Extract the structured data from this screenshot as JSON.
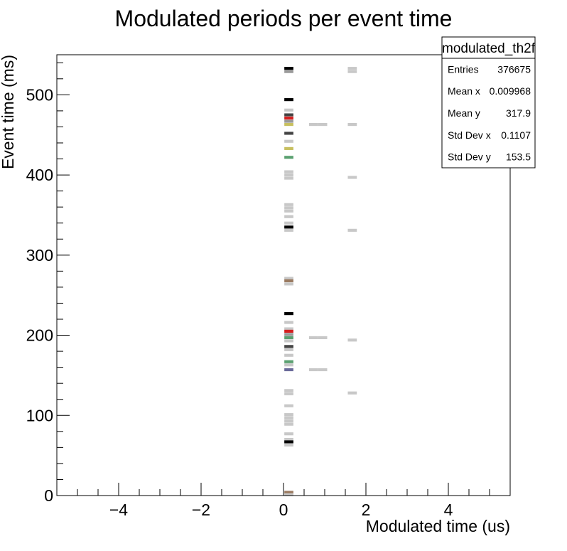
{
  "chart_data": {
    "type": "heatmap",
    "title": "Modulated periods per event time",
    "xlabel": "Modulated time (us)",
    "ylabel": "Event time (ms)",
    "xlim": [
      -5.5,
      5.5
    ],
    "ylim": [
      0,
      550
    ],
    "x_ticks": [
      -4,
      -2,
      0,
      2,
      4
    ],
    "y_ticks": [
      0,
      100,
      200,
      300,
      400,
      500
    ],
    "grid": false,
    "stats": {
      "name": "modulated_th2f",
      "rows": [
        {
          "label": "Entries",
          "value": "376675"
        },
        {
          "label": "Mean x",
          "value": "0.009968"
        },
        {
          "label": "Mean y",
          "value": "317.9"
        },
        {
          "label": "Std Dev x",
          "value": "0.1107"
        },
        {
          "label": "Std Dev y",
          "value": "153.5"
        }
      ]
    },
    "bin_width_x": 0.22,
    "bin_height_y": 3.7,
    "colors": {
      "low": "#c8c8c8",
      "gray": "#9a9a9a",
      "dark": "#444444",
      "black": "#000000",
      "red": "#d42020",
      "green": "#5aa070",
      "olive": "#c8c060",
      "purple": "#6a6a9a",
      "brown": "#9a7a60"
    },
    "cells": [
      {
        "x": 0.13,
        "y": 533,
        "c": "black"
      },
      {
        "x": 0.13,
        "y": 529,
        "c": "gray"
      },
      {
        "x": 0.13,
        "y": 494,
        "c": "black"
      },
      {
        "x": 0.13,
        "y": 481,
        "c": "low"
      },
      {
        "x": 0.13,
        "y": 475,
        "c": "dark"
      },
      {
        "x": 0.13,
        "y": 471,
        "c": "red"
      },
      {
        "x": 0.13,
        "y": 467,
        "c": "gray"
      },
      {
        "x": 0.13,
        "y": 463,
        "c": "olive"
      },
      {
        "x": 0.13,
        "y": 452,
        "c": "dark"
      },
      {
        "x": 0.13,
        "y": 442,
        "c": "low"
      },
      {
        "x": 0.13,
        "y": 433,
        "c": "olive"
      },
      {
        "x": 0.13,
        "y": 422,
        "c": "green"
      },
      {
        "x": 0.13,
        "y": 404,
        "c": "low"
      },
      {
        "x": 0.13,
        "y": 400,
        "c": "low"
      },
      {
        "x": 0.13,
        "y": 396,
        "c": "low"
      },
      {
        "x": 0.13,
        "y": 363,
        "c": "low"
      },
      {
        "x": 0.13,
        "y": 359,
        "c": "low"
      },
      {
        "x": 0.13,
        "y": 355,
        "c": "low"
      },
      {
        "x": 0.13,
        "y": 348,
        "c": "low"
      },
      {
        "x": 0.13,
        "y": 340,
        "c": "low"
      },
      {
        "x": 0.13,
        "y": 335,
        "c": "black"
      },
      {
        "x": 0.13,
        "y": 331,
        "c": "low"
      },
      {
        "x": 0.13,
        "y": 271,
        "c": "low"
      },
      {
        "x": 0.13,
        "y": 268,
        "c": "brown"
      },
      {
        "x": 0.13,
        "y": 264,
        "c": "low"
      },
      {
        "x": 0.13,
        "y": 227,
        "c": "black"
      },
      {
        "x": 0.13,
        "y": 216,
        "c": "low"
      },
      {
        "x": 0.13,
        "y": 208,
        "c": "low"
      },
      {
        "x": 0.13,
        "y": 205,
        "c": "red"
      },
      {
        "x": 0.13,
        "y": 201,
        "c": "gray"
      },
      {
        "x": 0.13,
        "y": 197,
        "c": "green"
      },
      {
        "x": 0.13,
        "y": 193,
        "c": "low"
      },
      {
        "x": 0.13,
        "y": 186,
        "c": "dark"
      },
      {
        "x": 0.13,
        "y": 182,
        "c": "low"
      },
      {
        "x": 0.13,
        "y": 175,
        "c": "low"
      },
      {
        "x": 0.13,
        "y": 167,
        "c": "green"
      },
      {
        "x": 0.13,
        "y": 163,
        "c": "low"
      },
      {
        "x": 0.13,
        "y": 157,
        "c": "purple"
      },
      {
        "x": 0.13,
        "y": 131,
        "c": "low"
      },
      {
        "x": 0.13,
        "y": 127,
        "c": "low"
      },
      {
        "x": 0.13,
        "y": 112,
        "c": "low"
      },
      {
        "x": 0.13,
        "y": 101,
        "c": "low"
      },
      {
        "x": 0.13,
        "y": 97,
        "c": "low"
      },
      {
        "x": 0.13,
        "y": 93,
        "c": "low"
      },
      {
        "x": 0.13,
        "y": 89,
        "c": "low"
      },
      {
        "x": 0.13,
        "y": 77,
        "c": "low"
      },
      {
        "x": 0.13,
        "y": 70,
        "c": "low"
      },
      {
        "x": 0.13,
        "y": 67,
        "c": "black"
      },
      {
        "x": 0.13,
        "y": 63,
        "c": "low"
      },
      {
        "x": 0.13,
        "y": 4,
        "c": "brown"
      },
      {
        "x": 0.13,
        "y": 1,
        "c": "low"
      },
      {
        "x": 0.73,
        "y": 463,
        "c": "low"
      },
      {
        "x": 0.95,
        "y": 463,
        "c": "low"
      },
      {
        "x": 0.73,
        "y": 197,
        "c": "low"
      },
      {
        "x": 0.95,
        "y": 197,
        "c": "low"
      },
      {
        "x": 0.73,
        "y": 157,
        "c": "low"
      },
      {
        "x": 0.95,
        "y": 157,
        "c": "low"
      },
      {
        "x": 1.67,
        "y": 533,
        "c": "low"
      },
      {
        "x": 1.67,
        "y": 529,
        "c": "low"
      },
      {
        "x": 1.67,
        "y": 463,
        "c": "low"
      },
      {
        "x": 1.67,
        "y": 397,
        "c": "low"
      },
      {
        "x": 1.67,
        "y": 331,
        "c": "low"
      },
      {
        "x": 1.67,
        "y": 194,
        "c": "low"
      },
      {
        "x": 1.67,
        "y": 128,
        "c": "low"
      }
    ]
  }
}
